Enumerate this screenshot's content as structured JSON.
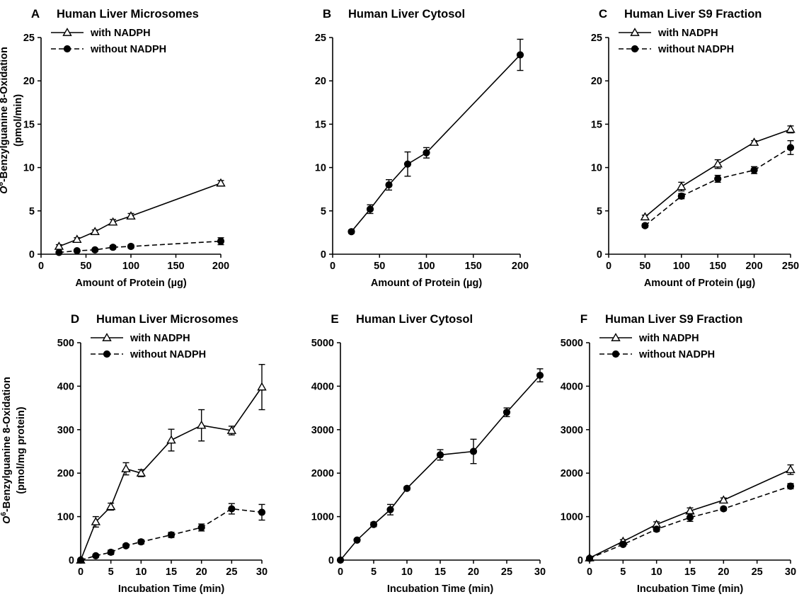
{
  "y_axis_label": {
    "top": {
      "prefix": "O",
      "sup": "6",
      "rest": "-Benzylguanine 8-Oxidation",
      "unit": "(pmol/min)"
    },
    "bottom": {
      "prefix": "O",
      "sup": "6",
      "rest": "-Benzylguanine 8-Oxidation",
      "unit": "(pmol/mg protein)"
    }
  },
  "chart_data": [
    {
      "type": "line",
      "panel_letter": "A",
      "title": "Human Liver Microsomes",
      "xlabel": "Amount of Protein (µg)",
      "ylabel": "",
      "xlim": [
        0,
        200
      ],
      "ylim": [
        0,
        25
      ],
      "xticks": [
        "0",
        "50",
        "100",
        "150",
        "200"
      ],
      "yticks": [
        "0",
        "5",
        "10",
        "15",
        "20",
        "25"
      ],
      "legend_position": "top-left",
      "series": [
        {
          "name": "with NADPH",
          "marker": "triangle-open",
          "dash": "solid",
          "x": [
            20,
            40,
            60,
            80,
            100,
            200
          ],
          "y": [
            0.9,
            1.7,
            2.6,
            3.7,
            4.4,
            8.2
          ],
          "err": [
            0.2,
            0.2,
            0.2,
            0.3,
            0.3,
            0.3
          ]
        },
        {
          "name": "without NADPH",
          "marker": "circle-filled",
          "dash": "dashed",
          "x": [
            20,
            40,
            60,
            80,
            100,
            200
          ],
          "y": [
            0.2,
            0.4,
            0.5,
            0.8,
            0.9,
            1.5
          ],
          "err": [
            0.1,
            0.1,
            0.1,
            0.2,
            0.2,
            0.4
          ]
        }
      ]
    },
    {
      "type": "line",
      "panel_letter": "B",
      "title": "Human Liver Cytosol",
      "xlabel": "Amount of Protein (µg)",
      "ylabel": "",
      "xlim": [
        0,
        200
      ],
      "ylim": [
        0,
        25
      ],
      "xticks": [
        "0",
        "50",
        "100",
        "150",
        "200"
      ],
      "yticks": [
        "0",
        "5",
        "10",
        "15",
        "20",
        "25"
      ],
      "legend_position": "none",
      "series": [
        {
          "name": "",
          "marker": "circle-filled",
          "dash": "solid",
          "x": [
            20,
            40,
            60,
            80,
            100,
            200
          ],
          "y": [
            2.6,
            5.2,
            8.0,
            10.4,
            11.7,
            23.0
          ],
          "err": [
            0.2,
            0.5,
            0.6,
            1.4,
            0.6,
            1.8
          ]
        }
      ]
    },
    {
      "type": "line",
      "panel_letter": "C",
      "title": "Human Liver S9 Fraction",
      "xlabel": "Amount of Protein (µg)",
      "ylabel": "",
      "xlim": [
        0,
        250
      ],
      "ylim": [
        0,
        25
      ],
      "xticks": [
        "0",
        "50",
        "100",
        "150",
        "200",
        "250"
      ],
      "yticks": [
        "0",
        "5",
        "10",
        "15",
        "20",
        "25"
      ],
      "legend_position": "top-left",
      "series": [
        {
          "name": "with NADPH",
          "marker": "triangle-open",
          "dash": "solid",
          "x": [
            50,
            100,
            150,
            200,
            250
          ],
          "y": [
            4.3,
            7.8,
            10.4,
            12.9,
            14.4
          ],
          "err": [
            0.2,
            0.5,
            0.5,
            0.2,
            0.4
          ]
        },
        {
          "name": "without NADPH",
          "marker": "circle-filled",
          "dash": "dashed",
          "x": [
            50,
            100,
            150,
            200,
            250
          ],
          "y": [
            3.3,
            6.7,
            8.7,
            9.7,
            12.3
          ],
          "err": [
            0.2,
            0.3,
            0.4,
            0.4,
            0.8
          ]
        }
      ]
    },
    {
      "type": "line",
      "panel_letter": "D",
      "title": "Human Liver Microsomes",
      "xlabel": "Incubation Time (min)",
      "ylabel": "",
      "xlim": [
        0,
        30
      ],
      "ylim": [
        0,
        500
      ],
      "xticks": [
        "0",
        "5",
        "10",
        "15",
        "20",
        "25",
        "30"
      ],
      "yticks": [
        "0",
        "100",
        "200",
        "300",
        "400",
        "500"
      ],
      "legend_position": "top-left",
      "series": [
        {
          "name": "with NADPH",
          "marker": "triangle-open",
          "dash": "solid",
          "x": [
            0,
            2.5,
            5,
            7.5,
            10,
            15,
            20,
            25,
            30
          ],
          "y": [
            0,
            88,
            123,
            210,
            200,
            276,
            310,
            298,
            398
          ],
          "err": [
            0,
            12,
            8,
            14,
            8,
            25,
            36,
            10,
            52
          ]
        },
        {
          "name": "without NADPH",
          "marker": "circle-filled",
          "dash": "dashed",
          "x": [
            0,
            2.5,
            5,
            7.5,
            10,
            15,
            20,
            25,
            30
          ],
          "y": [
            0,
            10,
            18,
            33,
            42,
            58,
            75,
            118,
            110
          ],
          "err": [
            0,
            3,
            5,
            4,
            5,
            6,
            8,
            12,
            18
          ]
        }
      ]
    },
    {
      "type": "line",
      "panel_letter": "E",
      "title": "Human Liver Cytosol",
      "xlabel": "Incubation Time (min)",
      "ylabel": "",
      "xlim": [
        0,
        30
      ],
      "ylim": [
        0,
        5000
      ],
      "xticks": [
        "0",
        "5",
        "10",
        "15",
        "20",
        "25",
        "30"
      ],
      "yticks": [
        "0",
        "1000",
        "2000",
        "3000",
        "4000",
        "5000"
      ],
      "legend_position": "none",
      "series": [
        {
          "name": "",
          "marker": "circle-filled",
          "dash": "solid",
          "x": [
            0,
            2.5,
            5,
            7.5,
            10,
            15,
            20,
            25,
            30
          ],
          "y": [
            0,
            460,
            820,
            1160,
            1650,
            2420,
            2500,
            3400,
            4250
          ],
          "err": [
            0,
            30,
            50,
            120,
            40,
            120,
            280,
            100,
            150
          ]
        }
      ]
    },
    {
      "type": "line",
      "panel_letter": "F",
      "title": "Human Liver S9 Fraction",
      "xlabel": "Incubation Time (min)",
      "ylabel": "",
      "xlim": [
        0,
        30
      ],
      "ylim": [
        0,
        5000
      ],
      "xticks": [
        "0",
        "5",
        "10",
        "15",
        "20",
        "25",
        "30"
      ],
      "yticks": [
        "0",
        "1000",
        "2000",
        "3000",
        "4000",
        "5000"
      ],
      "legend_position": "top-left",
      "series": [
        {
          "name": "with NADPH",
          "marker": "triangle-open",
          "dash": "solid",
          "x": [
            0,
            5,
            10,
            15,
            20,
            30
          ],
          "y": [
            50,
            430,
            820,
            1130,
            1380,
            2080
          ],
          "err": [
            20,
            40,
            60,
            70,
            50,
            110
          ]
        },
        {
          "name": "without NADPH",
          "marker": "circle-filled",
          "dash": "dashed",
          "x": [
            0,
            5,
            10,
            15,
            20,
            30
          ],
          "y": [
            40,
            360,
            710,
            980,
            1180,
            1700
          ],
          "err": [
            20,
            30,
            50,
            90,
            40,
            60
          ]
        }
      ]
    }
  ]
}
